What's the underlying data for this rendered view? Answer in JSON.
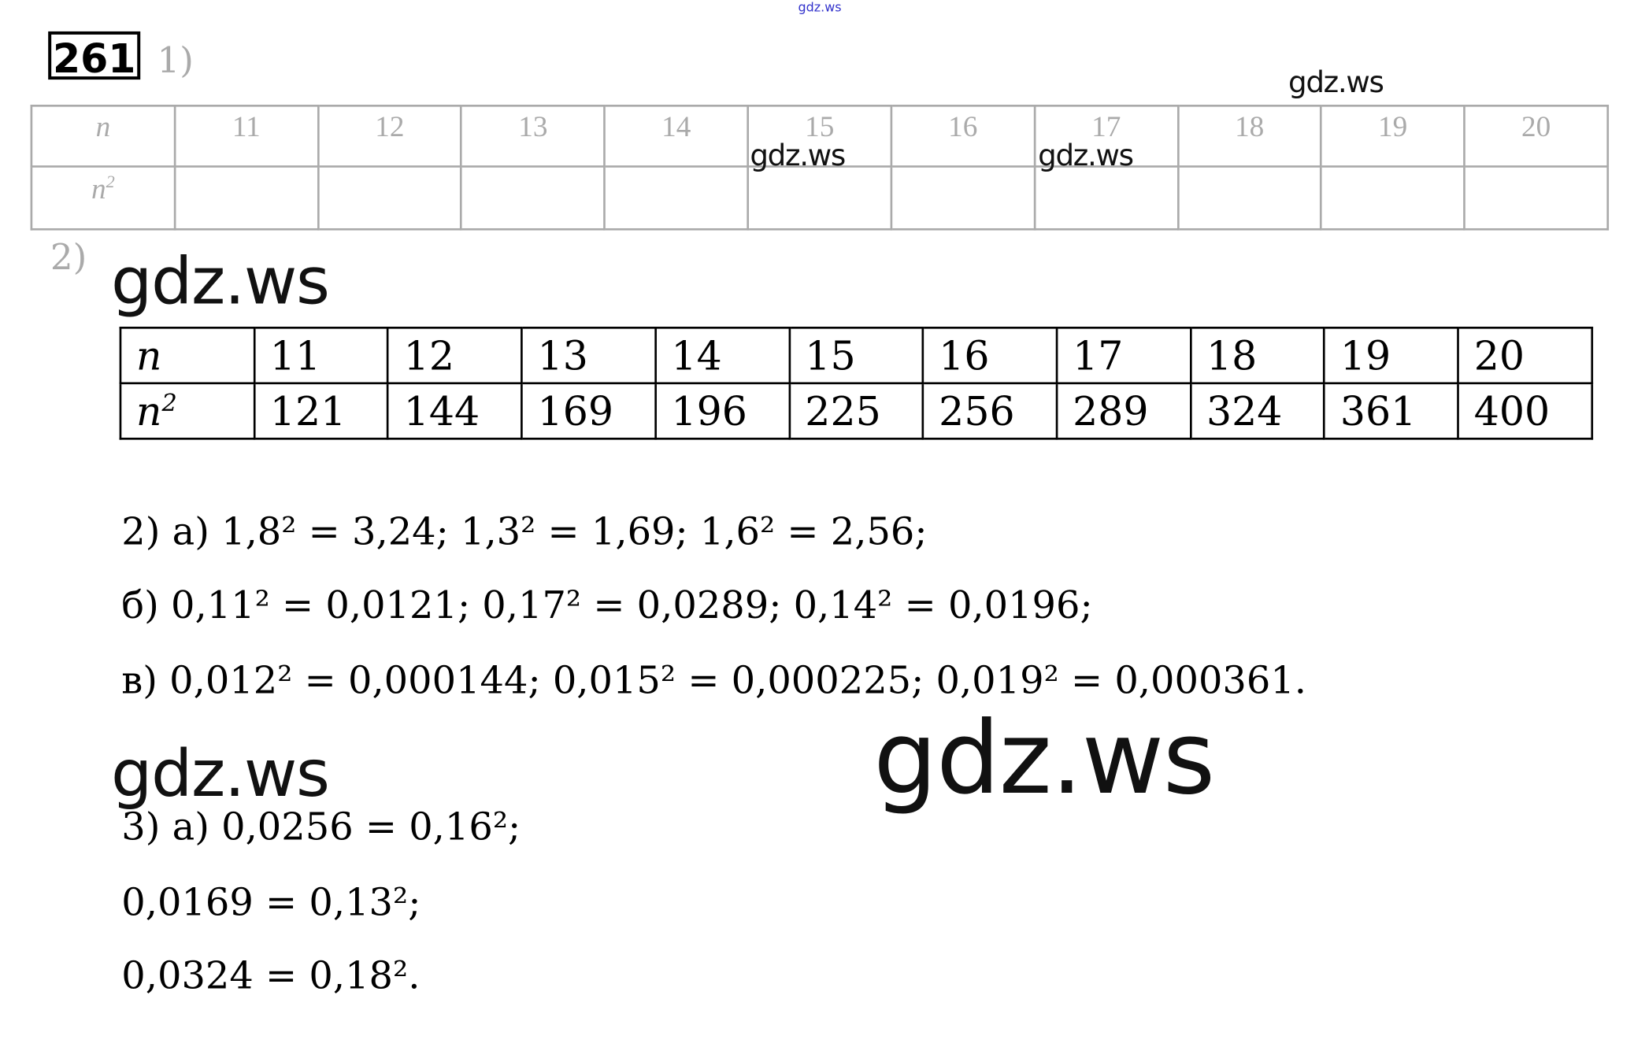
{
  "watermarks": {
    "top_small": "gdz.ws",
    "mark": "gdz.ws"
  },
  "task_number": "261",
  "part1": {
    "label": "1)",
    "row_n_header": "n",
    "row_n2_header": "n",
    "row_n2_exp": "2",
    "n_values": [
      "11",
      "12",
      "13",
      "14",
      "15",
      "16",
      "17",
      "18",
      "19",
      "20"
    ]
  },
  "part2": {
    "label": "2)",
    "row_n_header": "n",
    "row_n2_header": "n",
    "row_n2_exp": "2",
    "n_values": [
      "11",
      "12",
      "13",
      "14",
      "15",
      "16",
      "17",
      "18",
      "19",
      "20"
    ],
    "n2_values": [
      "121",
      "144",
      "169",
      "196",
      "225",
      "256",
      "289",
      "324",
      "361",
      "400"
    ]
  },
  "solutions": {
    "line_a": "2) а) 1,8² = 3,24;  1,3² = 1,69;  1,6² = 2,56;",
    "line_b": "б) 0,11² = 0,0121;  0,17² = 0,0289;  0,14² = 0,0196;",
    "line_v": "в) 0,012² = 0,000144;  0,015² = 0,000225;  0,019² = 0,000361.",
    "line_3a": "3) а) 0,0256 = 0,16²;",
    "line_3b": "0,0169 = 0,13²;",
    "line_3c": "0,0324 = 0,18²."
  },
  "colors": {
    "watermark_top": "#3333cc",
    "faded_table": "#aaaaaa"
  }
}
